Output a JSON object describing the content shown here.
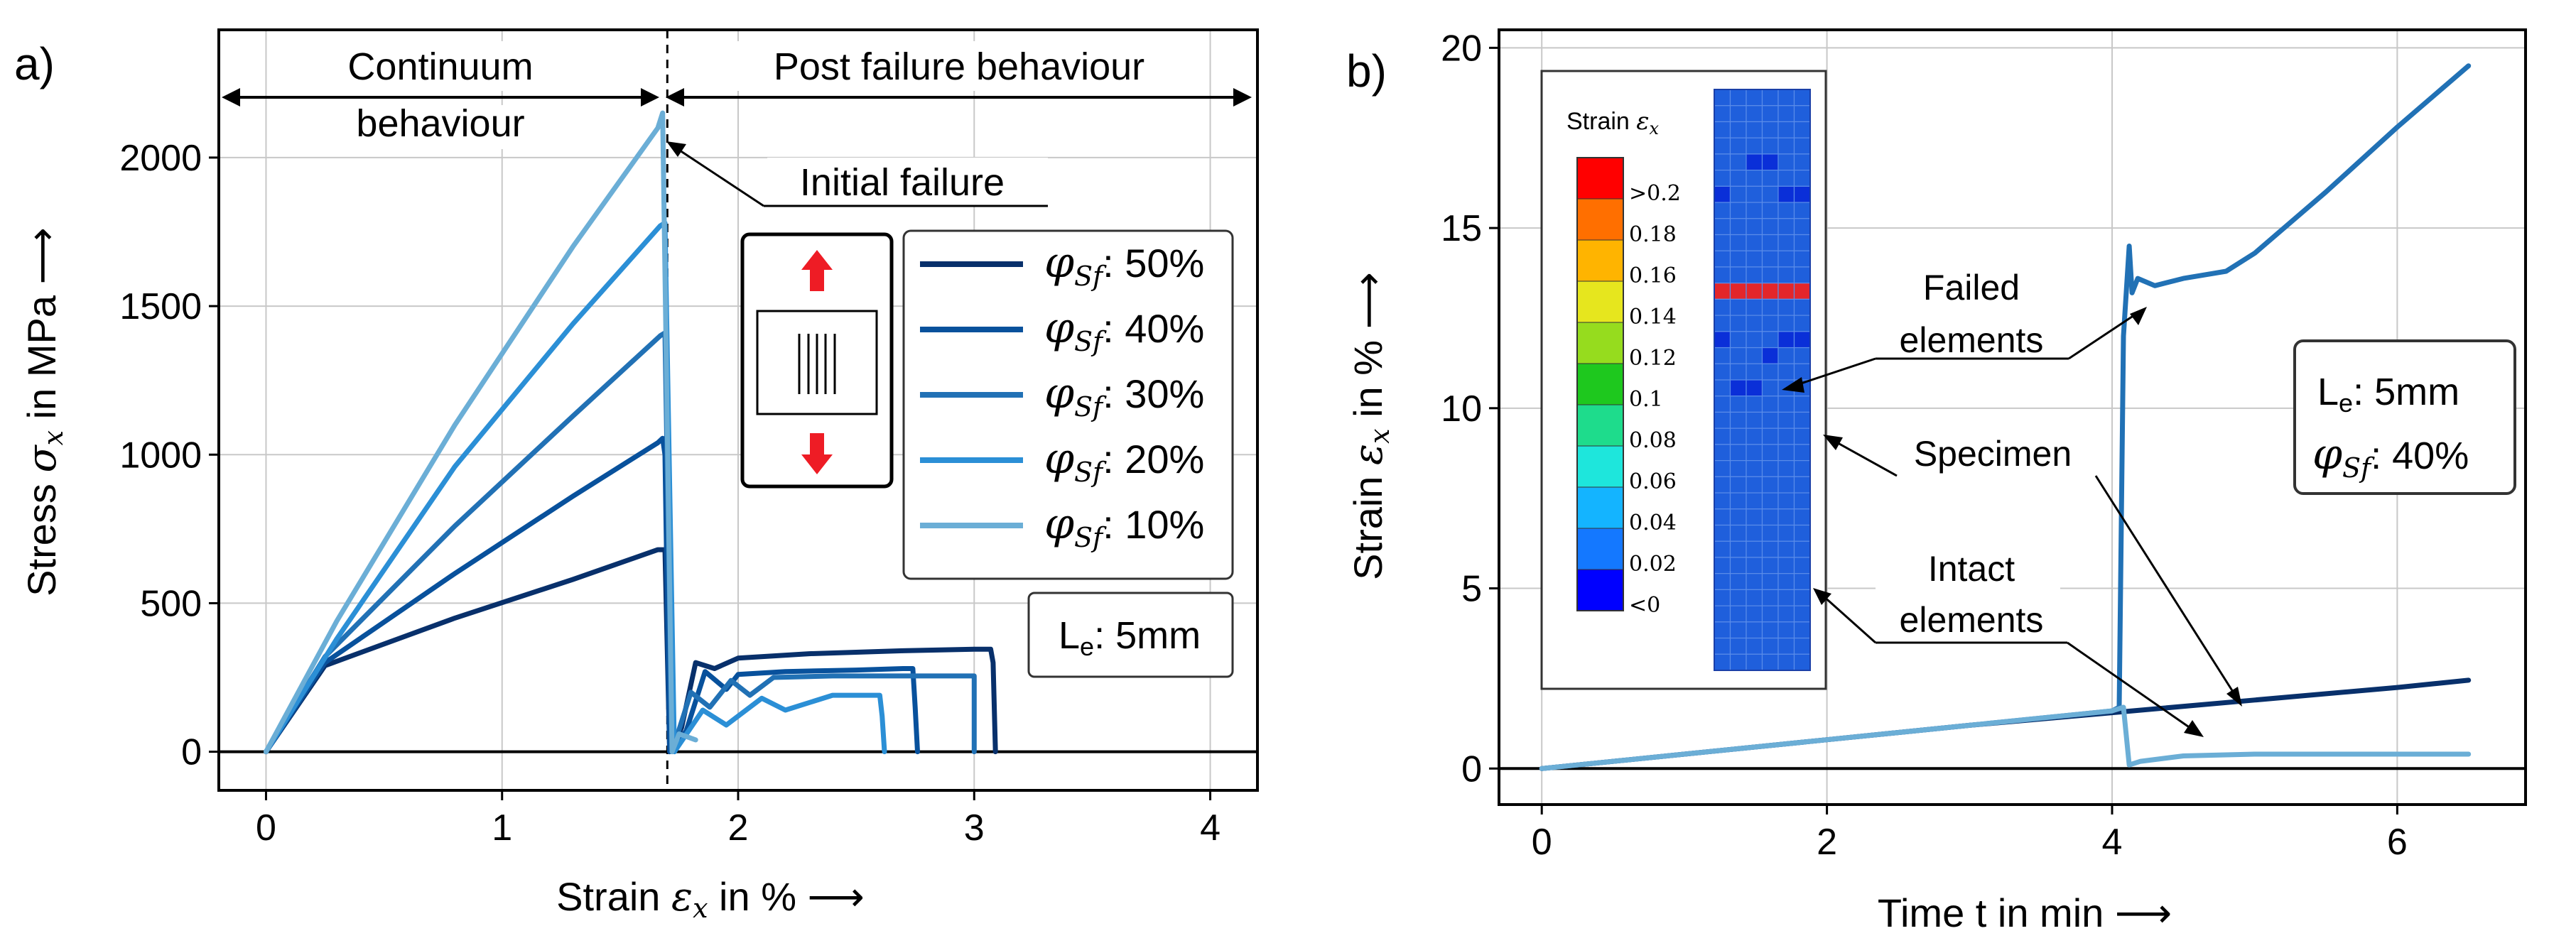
{
  "chart_data": [
    {
      "panel_label": "a)",
      "type": "line",
      "xlabel": "Strain",
      "xsymbol": "ε",
      "xsub": "x",
      "xunit": " in %  ⟶",
      "ylabel": "Stress",
      "ysymbol": "σ",
      "ysub": "x",
      "yunit": " in MPa  ⟶",
      "xlim": [
        -0.2,
        4.2
      ],
      "ylim": [
        -130,
        2430
      ],
      "xticks": [
        0,
        1,
        2,
        3,
        4
      ],
      "xtick_labels": [
        "0",
        "1",
        "2",
        "3",
        "4"
      ],
      "yticks": [
        0,
        500,
        1000,
        1500,
        2000
      ],
      "ytick_labels": [
        "0",
        "500",
        "1000",
        "1500",
        "2000"
      ],
      "failure_strain": 1.7,
      "regions": {
        "left": [
          "Continuum",
          "behaviour"
        ],
        "right": "Post failure behaviour"
      },
      "annotation": "Initial failure",
      "legend_prefix": "φ",
      "legend_sub": "Sf",
      "series": [
        {
          "name": "φSf: 50%",
          "label_value": ": 50%",
          "color": "#08306b",
          "x": [
            0,
            0.25,
            0.8,
            1.3,
            1.66,
            1.69,
            1.71,
            1.76,
            1.82,
            1.9,
            2.0,
            2.3,
            2.7,
            3.0,
            3.07,
            3.08,
            3.09
          ],
          "y": [
            0,
            290,
            450,
            580,
            680,
            680,
            0,
            80,
            300,
            280,
            315,
            330,
            340,
            345,
            345,
            300,
            0
          ]
        },
        {
          "name": "φSf: 40%",
          "label_value": ": 40%",
          "color": "#08519c",
          "x": [
            0,
            0.25,
            0.8,
            1.3,
            1.66,
            1.68,
            1.69,
            1.71,
            1.78,
            1.86,
            1.95,
            2.0,
            2.2,
            2.5,
            2.7,
            2.74,
            2.75,
            2.76
          ],
          "y": [
            0,
            300,
            600,
            860,
            1040,
            1055,
            1000,
            0,
            70,
            270,
            210,
            260,
            270,
            275,
            280,
            280,
            150,
            0
          ]
        },
        {
          "name": "φSf: 30%",
          "label_value": ": 30%",
          "color": "#2171b5",
          "x": [
            0,
            0.25,
            0.8,
            1.3,
            1.67,
            1.69,
            1.72,
            1.8,
            1.88,
            1.97,
            2.05,
            2.15,
            2.4,
            2.8,
            3.0,
            3.0
          ],
          "y": [
            0,
            320,
            760,
            1130,
            1400,
            1410,
            0,
            200,
            150,
            240,
            190,
            250,
            255,
            255,
            255,
            0
          ]
        },
        {
          "name": "φSf: 20%",
          "label_value": ": 20%",
          "color": "#2b8fd6",
          "x": [
            0,
            0.3,
            0.8,
            1.3,
            1.67,
            1.69,
            1.73,
            1.85,
            1.95,
            2.1,
            2.2,
            2.4,
            2.6,
            2.61,
            2.62
          ],
          "y": [
            0,
            380,
            960,
            1440,
            1770,
            1780,
            0,
            140,
            90,
            180,
            140,
            190,
            190,
            120,
            0
          ]
        },
        {
          "name": "φSf: 10%",
          "label_value": ": 10%",
          "color": "#6baed6",
          "x": [
            0,
            0.3,
            0.8,
            1.3,
            1.66,
            1.68,
            1.72,
            1.75,
            1.82
          ],
          "y": [
            0,
            440,
            1100,
            1700,
            2100,
            2150,
            0,
            60,
            40
          ]
        }
      ],
      "le_label": "L",
      "le_sub": "e",
      "le_value": ": 5mm"
    },
    {
      "panel_label": "b)",
      "type": "line",
      "xlabel": "Time t in min  ⟶",
      "ylabel": "Strain",
      "ysymbol": "ε",
      "ysub": "x",
      "yunit": " in %  ⟶",
      "xlim": [
        -0.3,
        6.9
      ],
      "ylim": [
        -1,
        20.5
      ],
      "xticks": [
        0,
        2,
        4,
        6
      ],
      "xtick_labels": [
        "0",
        "2",
        "4",
        "6"
      ],
      "yticks": [
        0,
        5,
        10,
        15,
        20
      ],
      "ytick_labels": [
        "0",
        "5",
        "10",
        "15",
        "20"
      ],
      "series": [
        {
          "name": "Specimen",
          "color": "#08306b",
          "x": [
            0,
            1,
            2,
            3,
            4,
            5,
            6,
            6.5
          ],
          "y": [
            0,
            0.4,
            0.8,
            1.2,
            1.55,
            1.9,
            2.25,
            2.45
          ]
        },
        {
          "name": "Failed elements",
          "color": "#2171b5",
          "x": [
            0,
            1,
            2,
            3,
            4.0,
            4.05,
            4.08,
            4.12,
            4.14,
            4.18,
            4.3,
            4.5,
            4.8,
            5.0,
            5.5,
            6.0,
            6.5
          ],
          "y": [
            0,
            0.4,
            0.8,
            1.2,
            1.6,
            1.7,
            12.0,
            14.5,
            13.2,
            13.6,
            13.4,
            13.6,
            13.8,
            14.3,
            16.0,
            17.8,
            19.5
          ]
        },
        {
          "name": "Intact elements",
          "color": "#6baed6",
          "x": [
            0,
            1,
            2,
            3,
            4.0,
            4.08,
            4.12,
            4.2,
            4.5,
            5.0,
            6.0,
            6.5
          ],
          "y": [
            0,
            0.4,
            0.8,
            1.2,
            1.6,
            1.7,
            0.1,
            0.2,
            0.35,
            0.4,
            0.4,
            0.4
          ]
        }
      ],
      "colorbar": {
        "title": "Strain",
        "symbol": "ε",
        "sub": "x",
        "labels": [
          ">0.2",
          "0.18",
          "0.16",
          "0.14",
          "0.12",
          "0.1",
          "0.08",
          "0.06",
          "0.04",
          "0.02",
          "<0"
        ],
        "colors": [
          "#ff0000",
          "#ff6f00",
          "#ffb400",
          "#e6e61e",
          "#96dc1e",
          "#1ec81e",
          "#1edc8c",
          "#1ee6dc",
          "#14b4ff",
          "#1478ff",
          "#0000ff"
        ]
      },
      "mesh_colors": {
        "base": "#1f5fdc",
        "failed": "#e3262a",
        "dark": "#0a2fd8"
      },
      "annotations": {
        "failed": [
          "Failed",
          "elements"
        ],
        "specimen": "Specimen",
        "intact": [
          "Intact",
          "elements"
        ]
      },
      "info_box": {
        "le_label": "L",
        "le_sub": "e",
        "le_value": ": 5mm",
        "phi": "φ",
        "phi_sub": "Sf",
        "phi_value": ": 40%"
      }
    }
  ]
}
